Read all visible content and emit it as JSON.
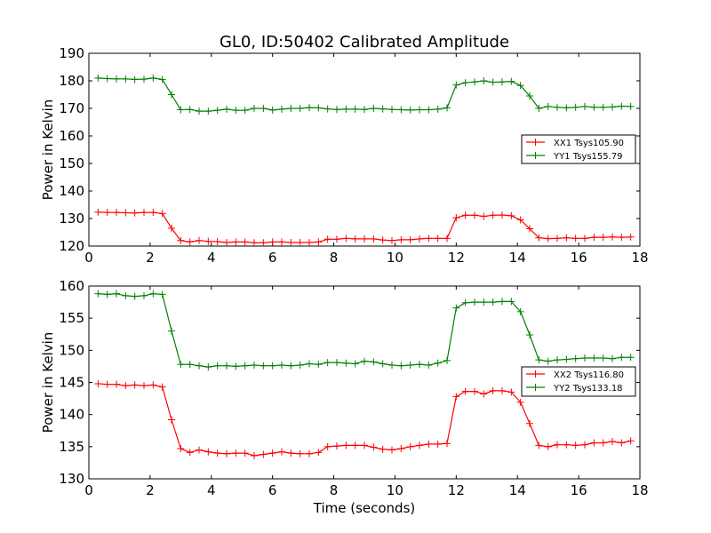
{
  "figure": {
    "title": "GL0, ID:50402 Calibrated Amplitude",
    "xlabel": "Time (seconds)"
  },
  "chart_data": [
    {
      "type": "line",
      "xlim": [
        0,
        18
      ],
      "ylim": [
        120,
        190
      ],
      "xticks": [
        0,
        2,
        4,
        6,
        8,
        10,
        12,
        14,
        16,
        18
      ],
      "yticks": [
        120,
        130,
        140,
        150,
        160,
        170,
        180,
        190
      ],
      "ylabel": "Power in Kelvin",
      "legend_position": "right",
      "x": [
        0.3,
        0.6,
        0.9,
        1.2,
        1.5,
        1.8,
        2.1,
        2.4,
        2.7,
        3.0,
        3.3,
        3.6,
        3.9,
        4.2,
        4.5,
        4.8,
        5.1,
        5.4,
        5.7,
        6.0,
        6.3,
        6.6,
        6.9,
        7.2,
        7.5,
        7.8,
        8.1,
        8.4,
        8.7,
        9.0,
        9.3,
        9.6,
        9.9,
        10.2,
        10.5,
        10.8,
        11.1,
        11.4,
        11.7,
        12.0,
        12.3,
        12.6,
        12.9,
        13.2,
        13.5,
        13.8,
        14.1,
        14.4,
        14.7,
        15.0,
        15.3,
        15.6,
        15.9,
        16.2,
        16.5,
        16.8,
        17.1,
        17.4,
        17.7
      ],
      "series": [
        {
          "name": "XX1 Tsys105.90",
          "color": "#ff0000",
          "values": [
            132.3,
            132.2,
            132.2,
            132.1,
            132.0,
            132.2,
            132.2,
            131.8,
            126.5,
            122.0,
            121.5,
            122.0,
            121.7,
            121.6,
            121.3,
            121.5,
            121.5,
            121.2,
            121.2,
            121.5,
            121.5,
            121.3,
            121.3,
            121.3,
            121.5,
            122.5,
            122.5,
            122.8,
            122.6,
            122.6,
            122.6,
            122.2,
            122.0,
            122.3,
            122.3,
            122.6,
            122.8,
            122.8,
            122.8,
            130.3,
            131.2,
            131.2,
            130.8,
            131.2,
            131.3,
            131.0,
            129.5,
            126.3,
            123.0,
            122.7,
            122.8,
            123.0,
            122.8,
            122.8,
            123.2,
            123.2,
            123.3,
            123.2,
            123.3
          ]
        },
        {
          "name": "YY1 Tsys155.79",
          "color": "#008000",
          "values": [
            181.0,
            180.8,
            180.7,
            180.7,
            180.5,
            180.6,
            181.0,
            180.5,
            175.0,
            169.5,
            169.6,
            169.0,
            169.0,
            169.3,
            169.7,
            169.3,
            169.3,
            170.0,
            170.0,
            169.4,
            169.7,
            170.0,
            170.0,
            170.3,
            170.2,
            169.8,
            169.6,
            169.7,
            169.7,
            169.6,
            170.0,
            169.8,
            169.6,
            169.5,
            169.4,
            169.5,
            169.5,
            169.7,
            170.2,
            178.5,
            179.3,
            179.6,
            180.0,
            179.5,
            179.6,
            179.8,
            178.3,
            174.5,
            170.0,
            170.7,
            170.4,
            170.2,
            170.4,
            170.7,
            170.4,
            170.4,
            170.5,
            170.8,
            170.7
          ]
        }
      ]
    },
    {
      "type": "line",
      "xlim": [
        0,
        18
      ],
      "ylim": [
        130,
        160
      ],
      "xticks": [
        0,
        2,
        4,
        6,
        8,
        10,
        12,
        14,
        16,
        18
      ],
      "yticks": [
        130,
        135,
        140,
        145,
        150,
        155,
        160
      ],
      "ylabel": "Power in Kelvin",
      "legend_position": "right",
      "x": [
        0.3,
        0.6,
        0.9,
        1.2,
        1.5,
        1.8,
        2.1,
        2.4,
        2.7,
        3.0,
        3.3,
        3.6,
        3.9,
        4.2,
        4.5,
        4.8,
        5.1,
        5.4,
        5.7,
        6.0,
        6.3,
        6.6,
        6.9,
        7.2,
        7.5,
        7.8,
        8.1,
        8.4,
        8.7,
        9.0,
        9.3,
        9.6,
        9.9,
        10.2,
        10.5,
        10.8,
        11.1,
        11.4,
        11.7,
        12.0,
        12.3,
        12.6,
        12.9,
        13.2,
        13.5,
        13.8,
        14.1,
        14.4,
        14.7,
        15.0,
        15.3,
        15.6,
        15.9,
        16.2,
        16.5,
        16.8,
        17.1,
        17.4,
        17.7
      ],
      "series": [
        {
          "name": "XX2 Tsys116.80",
          "color": "#ff0000",
          "values": [
            144.8,
            144.7,
            144.7,
            144.5,
            144.6,
            144.5,
            144.6,
            144.3,
            139.2,
            134.7,
            134.1,
            134.5,
            134.2,
            134.0,
            133.9,
            134.0,
            134.0,
            133.6,
            133.8,
            134.0,
            134.2,
            134.0,
            133.9,
            133.9,
            134.1,
            135.0,
            135.1,
            135.2,
            135.2,
            135.2,
            134.9,
            134.6,
            134.5,
            134.7,
            135.0,
            135.2,
            135.4,
            135.4,
            135.5,
            142.8,
            143.6,
            143.6,
            143.2,
            143.7,
            143.7,
            143.5,
            141.9,
            138.6,
            135.2,
            135.0,
            135.3,
            135.3,
            135.2,
            135.3,
            135.6,
            135.6,
            135.8,
            135.6,
            135.9
          ]
        },
        {
          "name": "YY2 Tsys133.18",
          "color": "#008000",
          "values": [
            158.8,
            158.7,
            158.8,
            158.5,
            158.4,
            158.5,
            158.8,
            158.7,
            153.0,
            147.8,
            147.8,
            147.6,
            147.4,
            147.6,
            147.6,
            147.5,
            147.6,
            147.7,
            147.6,
            147.6,
            147.7,
            147.6,
            147.7,
            147.9,
            147.8,
            148.1,
            148.1,
            148.0,
            147.9,
            148.3,
            148.2,
            147.9,
            147.7,
            147.6,
            147.7,
            147.8,
            147.7,
            148.0,
            148.4,
            156.6,
            157.4,
            157.5,
            157.5,
            157.5,
            157.6,
            157.6,
            156.0,
            152.4,
            148.5,
            148.3,
            148.5,
            148.6,
            148.7,
            148.8,
            148.8,
            148.8,
            148.7,
            148.9,
            148.9
          ]
        }
      ]
    }
  ]
}
